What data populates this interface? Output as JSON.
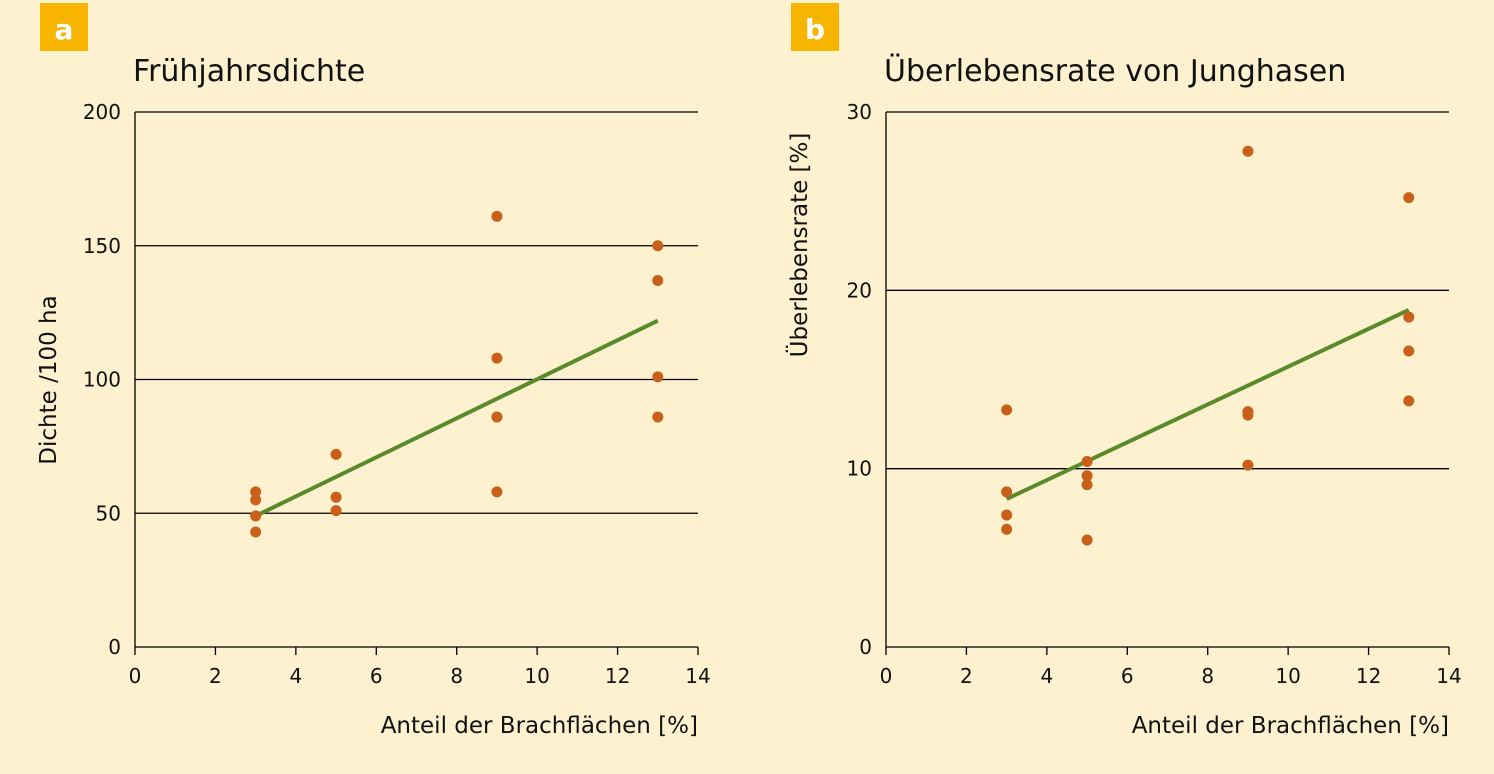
{
  "colors": {
    "background": "#fdf1cf",
    "badge": "#f7b500",
    "point": "#c8601a",
    "trend": "#5a8a2a",
    "grid": "#000000"
  },
  "chart_data": [
    {
      "panel": "a",
      "type": "scatter",
      "title": "Frühjahrsdichte",
      "xlabel": "Anteil der Brachflächen [%]",
      "ylabel": "Dichte /100 ha",
      "xlim": [
        0,
        14
      ],
      "ylim": [
        0,
        200
      ],
      "xticks": [
        "0",
        "2",
        "4",
        "6",
        "8",
        "10",
        "12",
        "14"
      ],
      "yticks": [
        "0",
        "50",
        "100",
        "150",
        "200"
      ],
      "grid_y": [
        50,
        100,
        150,
        200
      ],
      "points": [
        [
          3,
          58
        ],
        [
          3,
          55
        ],
        [
          3,
          49
        ],
        [
          3,
          43
        ],
        [
          5,
          72
        ],
        [
          5,
          56
        ],
        [
          5,
          51
        ],
        [
          9,
          161
        ],
        [
          9,
          108
        ],
        [
          9,
          86
        ],
        [
          9,
          58
        ],
        [
          13,
          150
        ],
        [
          13,
          137
        ],
        [
          13,
          101
        ],
        [
          13,
          86
        ]
      ],
      "trend_line": [
        [
          3,
          49
        ],
        [
          13,
          122
        ]
      ]
    },
    {
      "panel": "b",
      "type": "scatter",
      "title": "Überlebensrate von Junghasen",
      "xlabel": "Anteil der Brachflächen [%]",
      "ylabel": "Überlebensrate [%]",
      "xlim": [
        0,
        14
      ],
      "ylim": [
        0,
        30
      ],
      "xticks": [
        "0",
        "2",
        "4",
        "6",
        "8",
        "10",
        "12",
        "14"
      ],
      "yticks": [
        "0",
        "10",
        "20",
        "30"
      ],
      "grid_y": [
        10,
        20,
        30
      ],
      "points": [
        [
          3,
          13.3
        ],
        [
          3,
          8.7
        ],
        [
          3,
          7.4
        ],
        [
          3,
          6.6
        ],
        [
          5,
          10.4
        ],
        [
          5,
          9.6
        ],
        [
          5,
          9.1
        ],
        [
          5,
          6.0
        ],
        [
          9,
          27.8
        ],
        [
          9,
          13.2
        ],
        [
          9,
          13.0
        ],
        [
          9,
          10.2
        ],
        [
          13,
          25.2
        ],
        [
          13,
          18.5
        ],
        [
          13,
          16.6
        ],
        [
          13,
          13.8
        ]
      ],
      "trend_line": [
        [
          3,
          8.3
        ],
        [
          13,
          18.9
        ]
      ]
    }
  ]
}
